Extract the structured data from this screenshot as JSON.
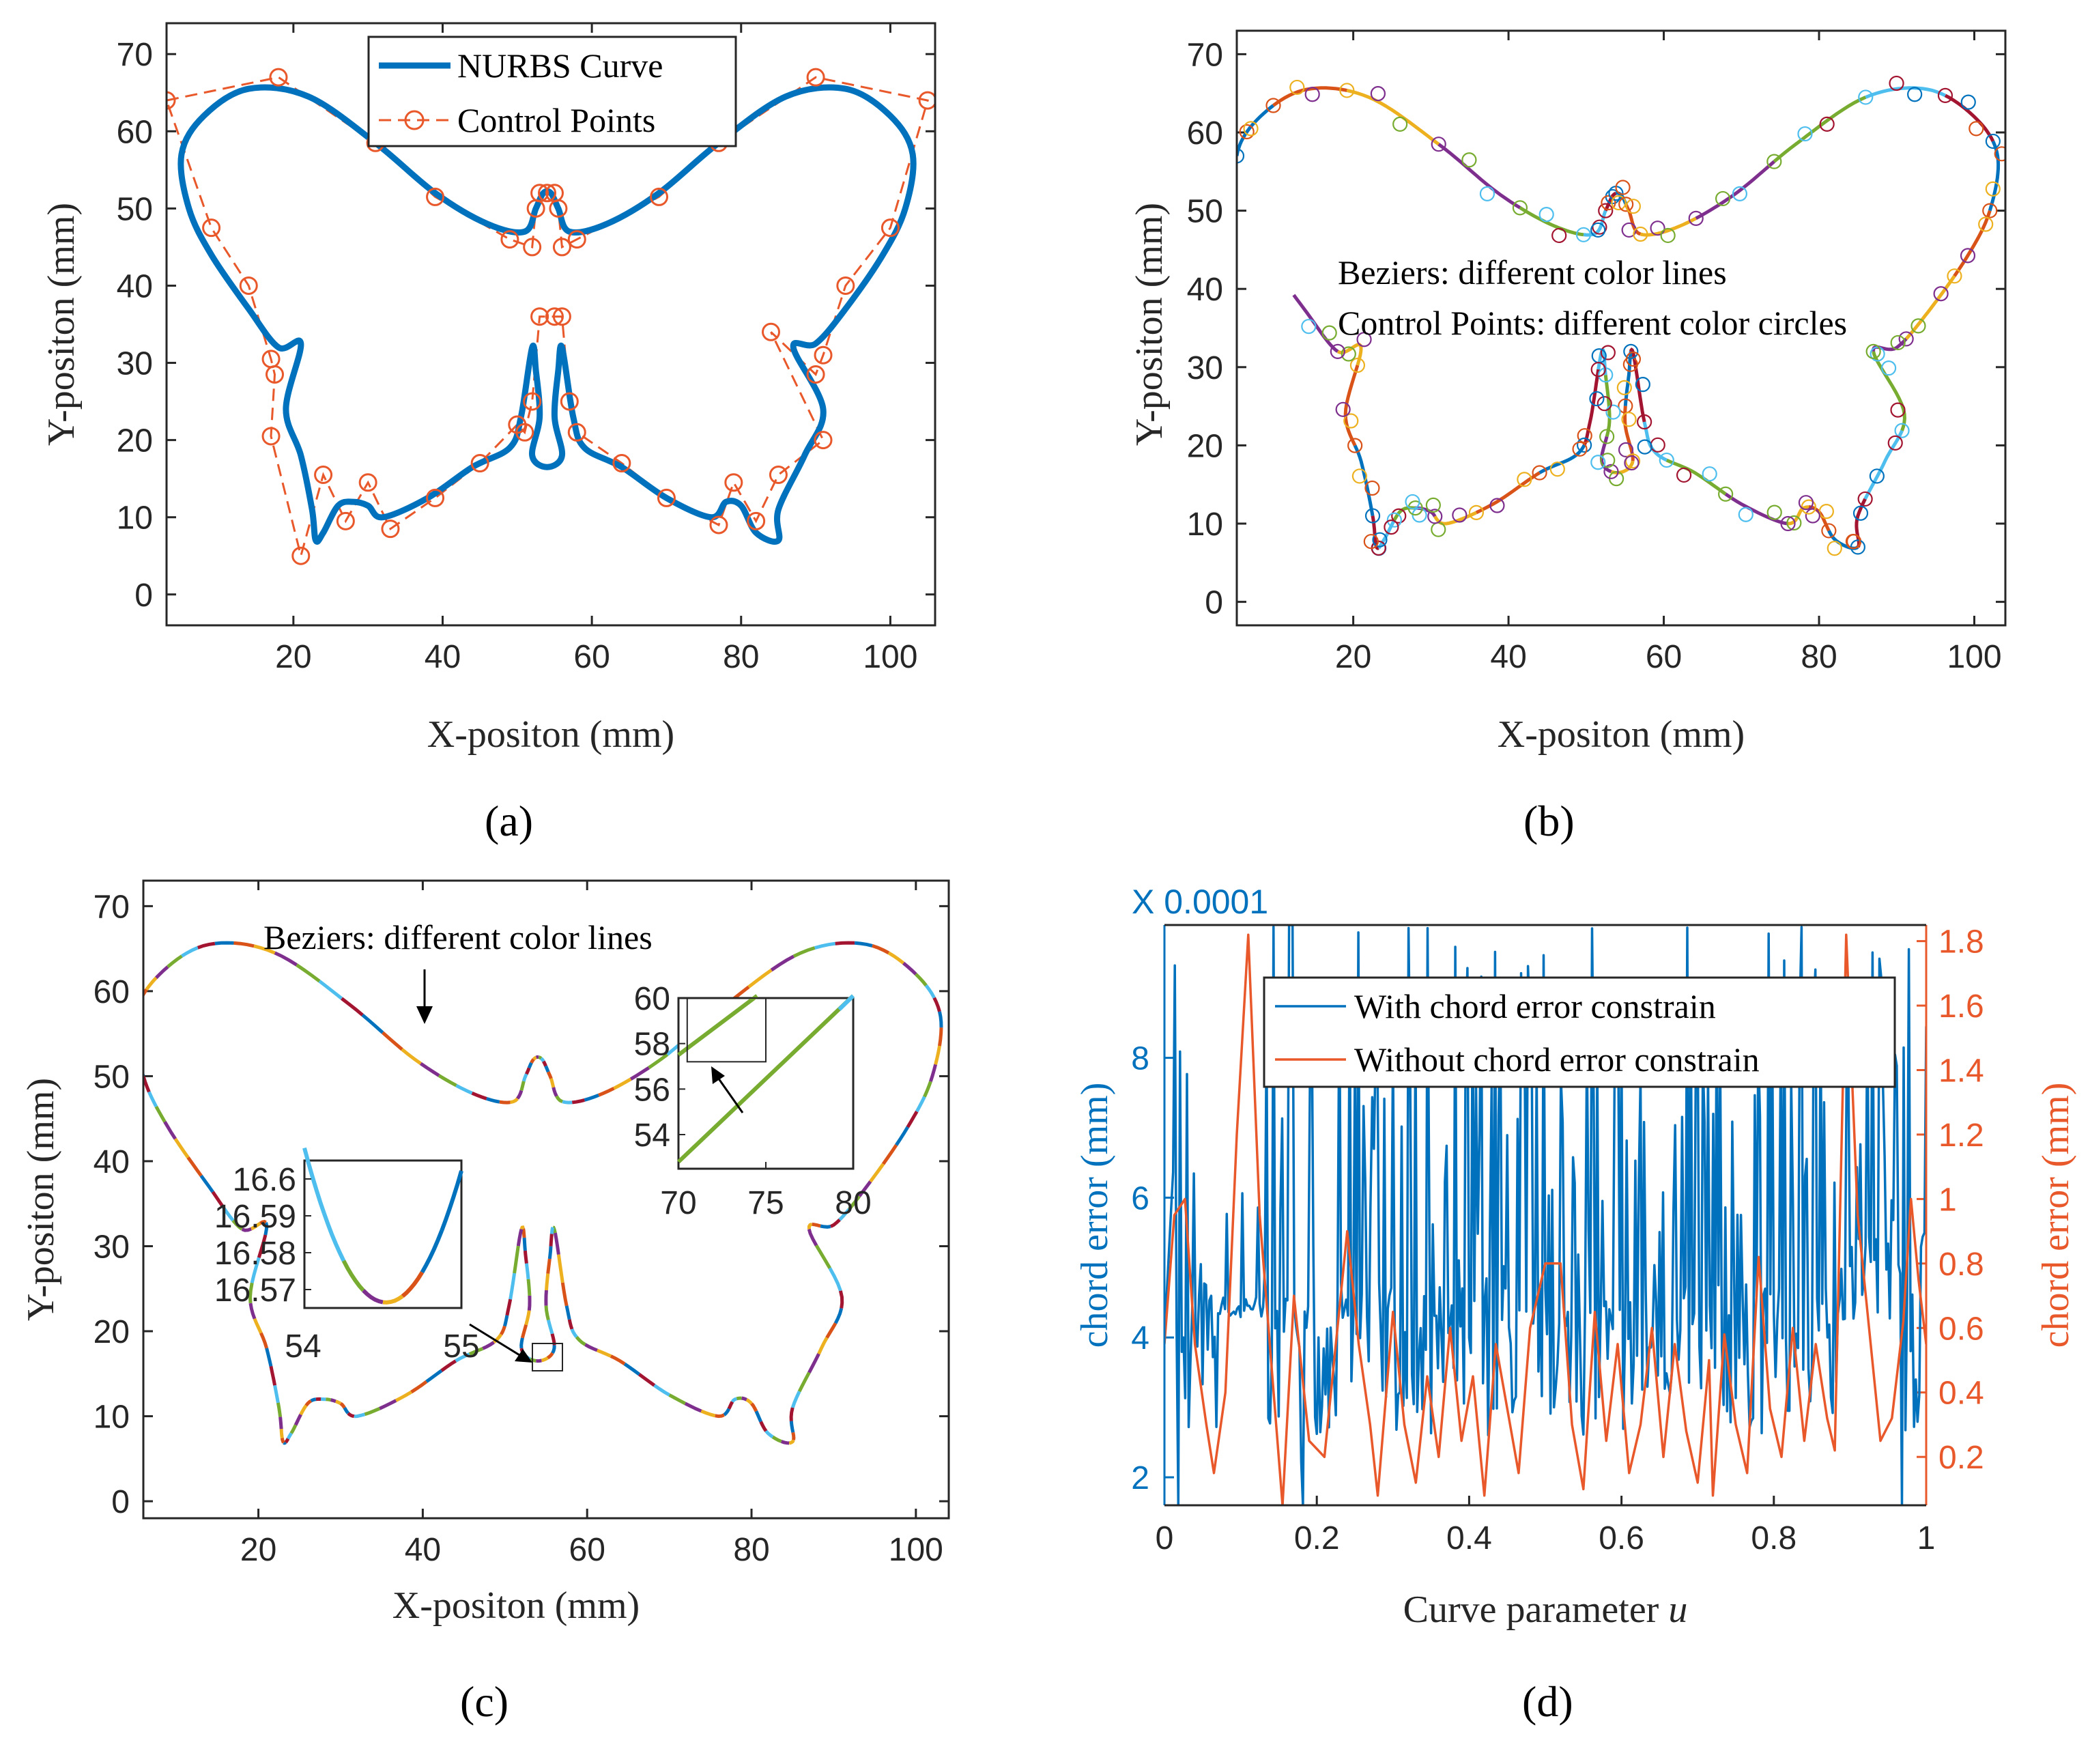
{
  "colors": {
    "nurbs": "#0072BD",
    "control": "#E8582A",
    "with": "#0072BD",
    "without": "#E8582A",
    "axis": "#262626",
    "palette": [
      "#0072BD",
      "#D95319",
      "#EDB120",
      "#7E2F8E",
      "#77AC30",
      "#4DBEEE",
      "#A2142F"
    ]
  },
  "panels": {
    "a": {
      "caption": "(a)",
      "xlabel": "X-positon (mm)",
      "ylabel": "Y-positon (mm)",
      "legend": {
        "curve": "NURBS Curve",
        "control": "Control Points"
      }
    },
    "b": {
      "caption": "(b)",
      "xlabel": "X-positon (mm)",
      "ylabel": "Y-positon (mm)",
      "text1": "Beziers: different color lines",
      "text2": "Control Points: different color circles"
    },
    "c": {
      "caption": "(c)",
      "xlabel": "X-positon (mm)",
      "ylabel": "Y-positon (mm)",
      "annotation": "Beziers: different color lines"
    },
    "d": {
      "caption": "(d)",
      "xlabel": "Curve parameter ",
      "xlabel_var": "u",
      "ylabel_left": "chord error (mm)",
      "ylabel_right": "chord error (mm)",
      "multiplier": "X 0.0001"
    }
  },
  "chart_data": [
    {
      "panel": "a",
      "type": "line",
      "xlim": [
        3,
        106
      ],
      "ylim": [
        -4,
        74
      ],
      "xticks": [
        20,
        40,
        60,
        80,
        100
      ],
      "yticks": [
        0,
        10,
        20,
        30,
        40,
        50,
        60,
        70
      ],
      "series": [
        {
          "name": "NURBS Curve",
          "style": "solid"
        },
        {
          "name": "Control Points",
          "style": "dashed-circles",
          "points": [
            [
              3,
              64
            ],
            [
              18,
              67
            ],
            [
              31,
              58.5
            ],
            [
              39,
              51.5
            ],
            [
              49,
              46
            ],
            [
              52,
              45
            ],
            [
              52.5,
              50
            ],
            [
              53,
              52
            ],
            [
              54,
              52
            ],
            [
              55,
              52
            ],
            [
              55.5,
              50
            ],
            [
              56,
              45
            ],
            [
              58,
              46
            ],
            [
              69,
              51.5
            ],
            [
              77,
              58.5
            ],
            [
              90,
              67
            ],
            [
              105,
              64
            ],
            [
              100,
              47.5
            ],
            [
              94,
              40
            ],
            [
              91,
              31
            ],
            [
              90,
              28.5
            ],
            [
              84,
              34
            ],
            [
              91,
              20
            ],
            [
              85,
              15.5
            ],
            [
              82,
              9.5
            ],
            [
              79,
              14.5
            ],
            [
              77,
              9
            ],
            [
              70,
              12.5
            ],
            [
              64,
              17
            ],
            [
              58,
              21
            ],
            [
              57,
              25
            ],
            [
              56,
              36
            ],
            [
              55,
              36
            ],
            [
              53,
              36
            ],
            [
              52,
              25
            ],
            [
              51,
              21
            ],
            [
              50,
              22
            ],
            [
              45,
              17
            ],
            [
              39,
              12.5
            ],
            [
              33,
              8.5
            ],
            [
              30,
              14.5
            ],
            [
              27,
              9.5
            ],
            [
              24,
              15.5
            ],
            [
              21,
              5
            ],
            [
              17,
              20.5
            ],
            [
              17.5,
              28.5
            ],
            [
              17,
              30.5
            ],
            [
              14,
              40
            ],
            [
              9,
              47.5
            ],
            [
              3,
              64
            ]
          ]
        }
      ],
      "shape_key_points": [
        [
          5,
          57
        ],
        [
          8,
          62
        ],
        [
          14,
          65.5
        ],
        [
          22,
          64.5
        ],
        [
          31,
          58.5
        ],
        [
          39,
          52
        ],
        [
          46,
          48
        ],
        [
          51,
          47
        ],
        [
          52.5,
          50
        ],
        [
          53.5,
          52
        ],
        [
          54.5,
          52
        ],
        [
          55.5,
          50
        ],
        [
          57,
          47
        ],
        [
          62,
          48
        ],
        [
          69,
          52
        ],
        [
          77,
          58.5
        ],
        [
          86,
          64.5
        ],
        [
          94,
          65.5
        ],
        [
          100,
          62
        ],
        [
          103,
          57
        ],
        [
          102,
          50
        ],
        [
          99,
          44
        ],
        [
          94,
          37
        ],
        [
          90,
          32.5
        ],
        [
          87,
          32
        ],
        [
          91,
          24
        ],
        [
          88.5,
          18
        ],
        [
          85,
          11
        ],
        [
          85,
          7
        ],
        [
          82,
          8
        ],
        [
          80,
          11.5
        ],
        [
          78,
          12
        ],
        [
          76,
          10
        ],
        [
          70,
          12.5
        ],
        [
          64,
          16.5
        ],
        [
          59,
          19
        ],
        [
          57.5,
          23
        ],
        [
          56,
          32
        ],
        [
          55.5,
          29
        ],
        [
          55,
          23
        ],
        [
          56,
          18
        ],
        [
          54,
          16.5
        ],
        [
          52,
          18
        ],
        [
          53,
          23
        ],
        [
          52.5,
          29
        ],
        [
          52,
          32
        ],
        [
          50.5,
          23
        ],
        [
          49,
          19
        ],
        [
          44,
          16.5
        ],
        [
          38,
          12.5
        ],
        [
          32,
          10
        ],
        [
          30,
          11.5
        ],
        [
          28,
          12
        ],
        [
          26,
          11.5
        ],
        [
          24,
          8
        ],
        [
          23,
          7
        ],
        [
          22.5,
          11
        ],
        [
          21,
          18
        ],
        [
          19,
          24
        ],
        [
          21,
          32.5
        ],
        [
          18,
          32
        ],
        [
          14,
          37
        ],
        [
          9,
          44
        ],
        [
          6,
          50
        ],
        [
          5,
          57
        ]
      ]
    },
    {
      "panel": "b",
      "type": "line",
      "xlim": [
        5,
        104
      ],
      "ylim": [
        -3,
        73
      ],
      "xticks": [
        20,
        40,
        60,
        80,
        100
      ],
      "yticks": [
        0,
        10,
        20,
        30,
        40,
        50,
        60,
        70
      ],
      "series": [
        {
          "name": "Beziers",
          "segments": 46
        },
        {
          "name": "Control Points",
          "markers": "circles"
        }
      ]
    },
    {
      "panel": "c",
      "type": "line",
      "xlim": [
        6,
        104
      ],
      "ylim": [
        -2,
        73
      ],
      "xticks": [
        20,
        40,
        60,
        80,
        100
      ],
      "yticks": [
        0,
        10,
        20,
        30,
        40,
        50,
        60,
        70
      ],
      "inset_right": {
        "xlim": [
          70,
          80
        ],
        "ylim": [
          52.5,
          60
        ],
        "xticks": [
          70,
          75,
          80
        ],
        "yticks": [
          54,
          56,
          58,
          60
        ]
      },
      "inset_left": {
        "xlim": [
          54,
          55
        ],
        "ylim": [
          16.565,
          16.605
        ],
        "xticks": [
          54,
          55
        ],
        "yticks": [
          16.57,
          16.58,
          16.59,
          16.6
        ],
        "ytick_labels": [
          "16.57",
          "16.58",
          "16.59",
          "16.6"
        ]
      }
    },
    {
      "panel": "d",
      "type": "line",
      "x": {
        "lim": [
          0,
          1
        ],
        "ticks": [
          0,
          0.2,
          0.4,
          0.6,
          0.8,
          1
        ],
        "tick_labels": [
          "0",
          "0.2",
          "0.4",
          "0.6",
          "0.8",
          "1"
        ]
      },
      "y_left": {
        "lim": [
          1.6,
          9.9
        ],
        "ticks": [
          2,
          4,
          6,
          8
        ],
        "unit_multiplier": "X 0.0001"
      },
      "y_right": {
        "lim": [
          0.05,
          1.85
        ],
        "ticks": [
          0.2,
          0.4,
          0.6,
          0.8,
          1,
          1.2,
          1.4,
          1.6,
          1.8
        ],
        "tick_labels": [
          "0.2",
          "0.4",
          "0.6",
          "0.8",
          "1",
          "1.2",
          "1.4",
          "1.6",
          "1.8"
        ]
      },
      "series": [
        {
          "name": "With chord error constrain",
          "axis": "left",
          "points": 440
        },
        {
          "name": "Without chord error constrain",
          "axis": "right",
          "x": [
            0,
            0.013,
            0.027,
            0.04,
            0.055,
            0.065,
            0.08,
            0.095,
            0.11,
            0.125,
            0.14,
            0.155,
            0.17,
            0.19,
            0.21,
            0.225,
            0.24,
            0.255,
            0.27,
            0.28,
            0.3,
            0.315,
            0.33,
            0.345,
            0.36,
            0.375,
            0.39,
            0.405,
            0.42,
            0.435,
            0.45,
            0.465,
            0.48,
            0.5,
            0.51,
            0.52,
            0.535,
            0.55,
            0.565,
            0.58,
            0.595,
            0.61,
            0.625,
            0.64,
            0.655,
            0.67,
            0.685,
            0.7,
            0.715,
            0.72,
            0.735,
            0.75,
            0.765,
            0.78,
            0.795,
            0.81,
            0.825,
            0.84,
            0.855,
            0.87,
            0.88,
            0.895,
            0.91,
            0.925,
            0.94,
            0.955,
            0.97,
            0.98,
            0.99,
            1.0
          ],
          "y": [
            0.55,
            0.95,
            1.0,
            0.55,
            0.3,
            0.15,
            0.4,
            1.2,
            1.82,
            0.95,
            0.5,
            0.05,
            0.7,
            0.25,
            0.2,
            0.55,
            0.9,
            0.55,
            0.3,
            0.08,
            0.65,
            0.3,
            0.12,
            0.45,
            0.2,
            0.6,
            0.25,
            0.45,
            0.08,
            0.55,
            0.35,
            0.15,
            0.6,
            0.8,
            0.8,
            0.8,
            0.3,
            0.1,
            0.65,
            0.25,
            0.55,
            0.15,
            0.3,
            0.6,
            0.2,
            0.55,
            0.28,
            0.12,
            0.5,
            0.08,
            0.58,
            0.3,
            0.15,
            0.82,
            0.35,
            0.2,
            0.6,
            0.25,
            0.55,
            0.32,
            0.22,
            1.82,
            0.95,
            0.6,
            0.25,
            0.32,
            0.62,
            1.0,
            0.75,
            0.55
          ]
        }
      ],
      "legend_position": "top-center"
    }
  ]
}
